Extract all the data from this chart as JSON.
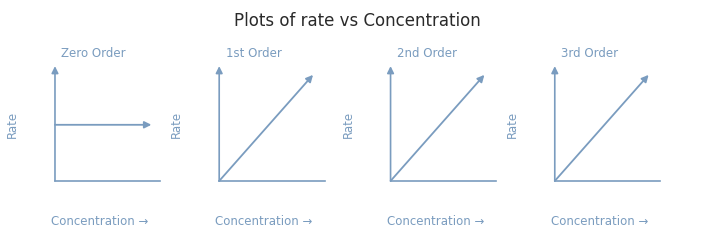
{
  "title": "Plots of rate vs Concentration",
  "title_fontsize": 12,
  "subplots": [
    {
      "label": "Zero Order",
      "type": "zero"
    },
    {
      "label": "1st Order",
      "type": "linear"
    },
    {
      "label": "2nd Order",
      "type": "linear"
    },
    {
      "label": "3rd Order",
      "type": "linear"
    }
  ],
  "xlabel": "Concentration →",
  "ylabel": "Rate",
  "line_color": "#7a9cbf",
  "axis_color": "#7a9cbf",
  "label_color": "#7a9cbf",
  "title_color": "#2a2a2a",
  "bg_color": "#ffffff",
  "fig_bg_color": "#ffffff",
  "font_size": 8.5,
  "order_label_fontsize": 8.5
}
